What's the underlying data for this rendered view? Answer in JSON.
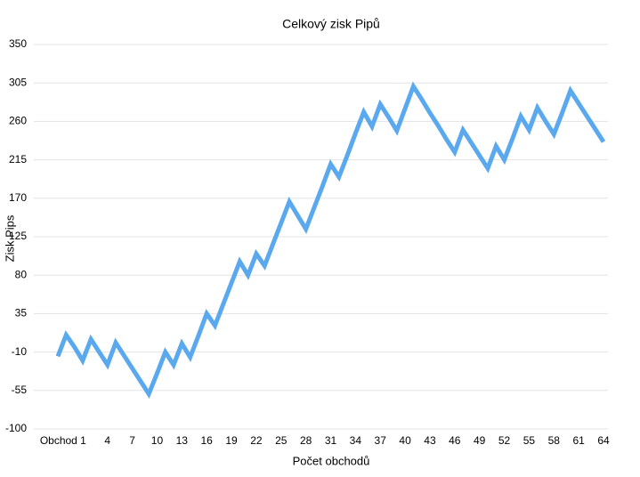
{
  "chart_data": {
    "type": "line",
    "title": "Celkový zisk Pipů",
    "x_label": "Počet obchodů",
    "y_label": "Zisk Pips",
    "categories": [
      null,
      null,
      null,
      "Obchod 1",
      null,
      null,
      "4",
      null,
      null,
      "7",
      null,
      null,
      "10",
      null,
      null,
      "13",
      null,
      null,
      "16",
      null,
      null,
      "19",
      null,
      null,
      "22",
      null,
      null,
      "25",
      null,
      null,
      "28",
      null,
      null,
      "31",
      null,
      null,
      "34",
      null,
      null,
      "37",
      null,
      null,
      "40",
      null,
      null,
      "43",
      null,
      null,
      "46",
      null,
      null,
      "49",
      null,
      null,
      "52",
      null,
      null,
      "55",
      null,
      null,
      "58",
      null,
      null,
      "61",
      null,
      null,
      "64"
    ],
    "series": [
      {
        "name": "Zisk Pips",
        "color": "#5aa9ef",
        "values": [
          -15,
          10,
          -4,
          -20,
          5,
          -10,
          -25,
          1,
          -14,
          -29,
          -44,
          -59,
          -35,
          -10,
          -25,
          0,
          -16,
          9,
          35,
          21,
          46,
          71,
          96,
          80,
          105,
          91,
          116,
          141,
          166,
          150,
          134,
          159,
          184,
          210,
          195,
          220,
          246,
          271,
          254,
          280,
          265,
          249,
          275,
          301,
          286,
          270,
          255,
          239,
          224,
          250,
          235,
          220,
          205,
          231,
          215,
          240,
          266,
          250,
          276,
          260,
          245,
          270,
          296,
          281,
          266,
          251,
          236
        ]
      }
    ],
    "ylim": [
      -100,
      350
    ],
    "yticks": [
      -100,
      -55,
      -10,
      35,
      80,
      125,
      170,
      215,
      260,
      305,
      350
    ],
    "grid": true
  }
}
